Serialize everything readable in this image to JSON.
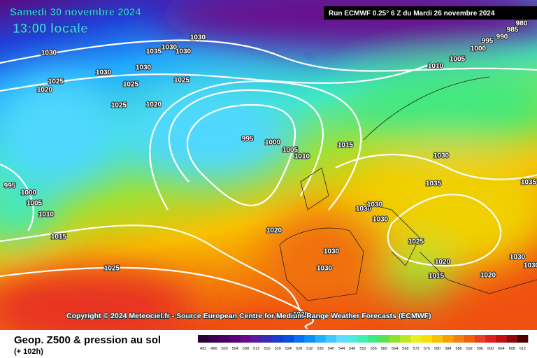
{
  "header": {
    "date": "Samedi 30 novembre 2024",
    "time": "13:00 locale",
    "run": "Run ECMWF 0.25° 6 Z du Mardi 26 novembre 2024"
  },
  "map": {
    "isobar_labels": [
      1030,
      1035,
      1030,
      1030,
      1030,
      1030,
      1030,
      1025,
      1025,
      1025,
      1020,
      1025,
      1020,
      995,
      1000,
      1005,
      1010,
      1015,
      1010,
      1005,
      1000,
      995,
      990,
      985,
      980,
      1030,
      1035,
      1035,
      1030,
      1030,
      1030,
      1025,
      1020,
      1015,
      1020,
      1030,
      1030,
      995,
      1000,
      1005,
      1010,
      1015,
      1020,
      1030,
      1030,
      1025,
      1020
    ],
    "copyright": "Copyright © 2024 Meteociel.fr - Source European Centre for Medium-Range Weather Forecasts (ECMWF)"
  },
  "legend": {
    "title": "Geop. Z500 & pression au sol",
    "lead": "(+ 102h)",
    "values": [
      492,
      496,
      500,
      504,
      508,
      512,
      516,
      520,
      524,
      528,
      532,
      536,
      540,
      544,
      548,
      552,
      556,
      560,
      564,
      568,
      572,
      576,
      580,
      584,
      588,
      592,
      596,
      600,
      604,
      608,
      612
    ],
    "colors": [
      "#2a0038",
      "#3c0050",
      "#4b0066",
      "#5a007a",
      "#6a0a8a",
      "#5a1aa0",
      "#3a2ab8",
      "#1a3ad0",
      "#0a50e0",
      "#0a70f0",
      "#0a90f8",
      "#20b0ff",
      "#40c8ff",
      "#60dcff",
      "#50e8e0",
      "#40f0b0",
      "#40e880",
      "#60e050",
      "#90e030",
      "#c0e820",
      "#e8f020",
      "#f8e000",
      "#f8c000",
      "#f8a000",
      "#f08010",
      "#f06010",
      "#e84020",
      "#e02020",
      "#c01010",
      "#900808",
      "#500000"
    ]
  }
}
